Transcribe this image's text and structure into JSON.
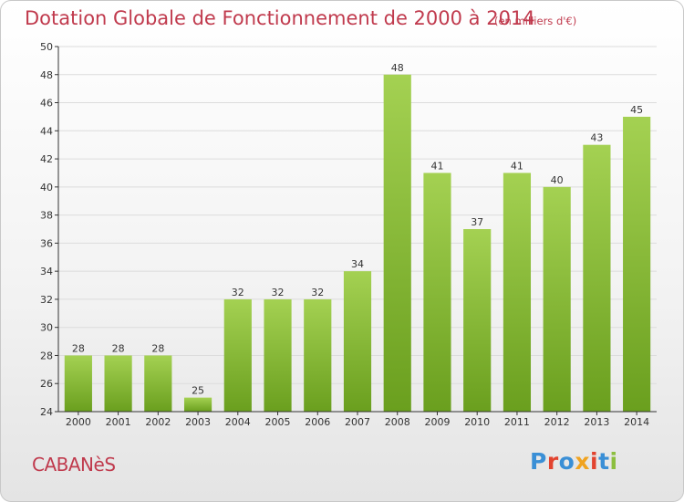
{
  "header": {
    "title": "Dotation Globale de Fonctionnement de 2000 à 2014",
    "subtitle": "(en milliers d'€)"
  },
  "footer": {
    "place": "CABANèS",
    "logo": {
      "letters": [
        "P",
        "r",
        "o",
        "x",
        "i",
        "t",
        "i"
      ],
      "colors": [
        "#3a8fd6",
        "#e2432f",
        "#3a8fd6",
        "#f0a320",
        "#e2432f",
        "#3a8fd6",
        "#8cbf3f"
      ]
    }
  },
  "chart_data": {
    "type": "bar",
    "title": "Dotation Globale de Fonctionnement de 2000 à 2014",
    "subtitle": "(en milliers d'€)",
    "categories": [
      "2000",
      "2001",
      "2002",
      "2003",
      "2004",
      "2005",
      "2006",
      "2007",
      "2008",
      "2009",
      "2010",
      "2011",
      "2012",
      "2013",
      "2014"
    ],
    "values": [
      28,
      28,
      28,
      25,
      32,
      32,
      32,
      34,
      48,
      41,
      37,
      41,
      40,
      43,
      45
    ],
    "ylim": [
      24,
      50
    ],
    "yticks": [
      24,
      26,
      28,
      30,
      32,
      34,
      36,
      38,
      40,
      42,
      44,
      46,
      48,
      50
    ],
    "grid": true,
    "colors": {
      "bar_light": "#a4d152",
      "bar_dark": "#6a9f1e",
      "grid": "#dcdcdc",
      "axis": "#333333"
    }
  }
}
